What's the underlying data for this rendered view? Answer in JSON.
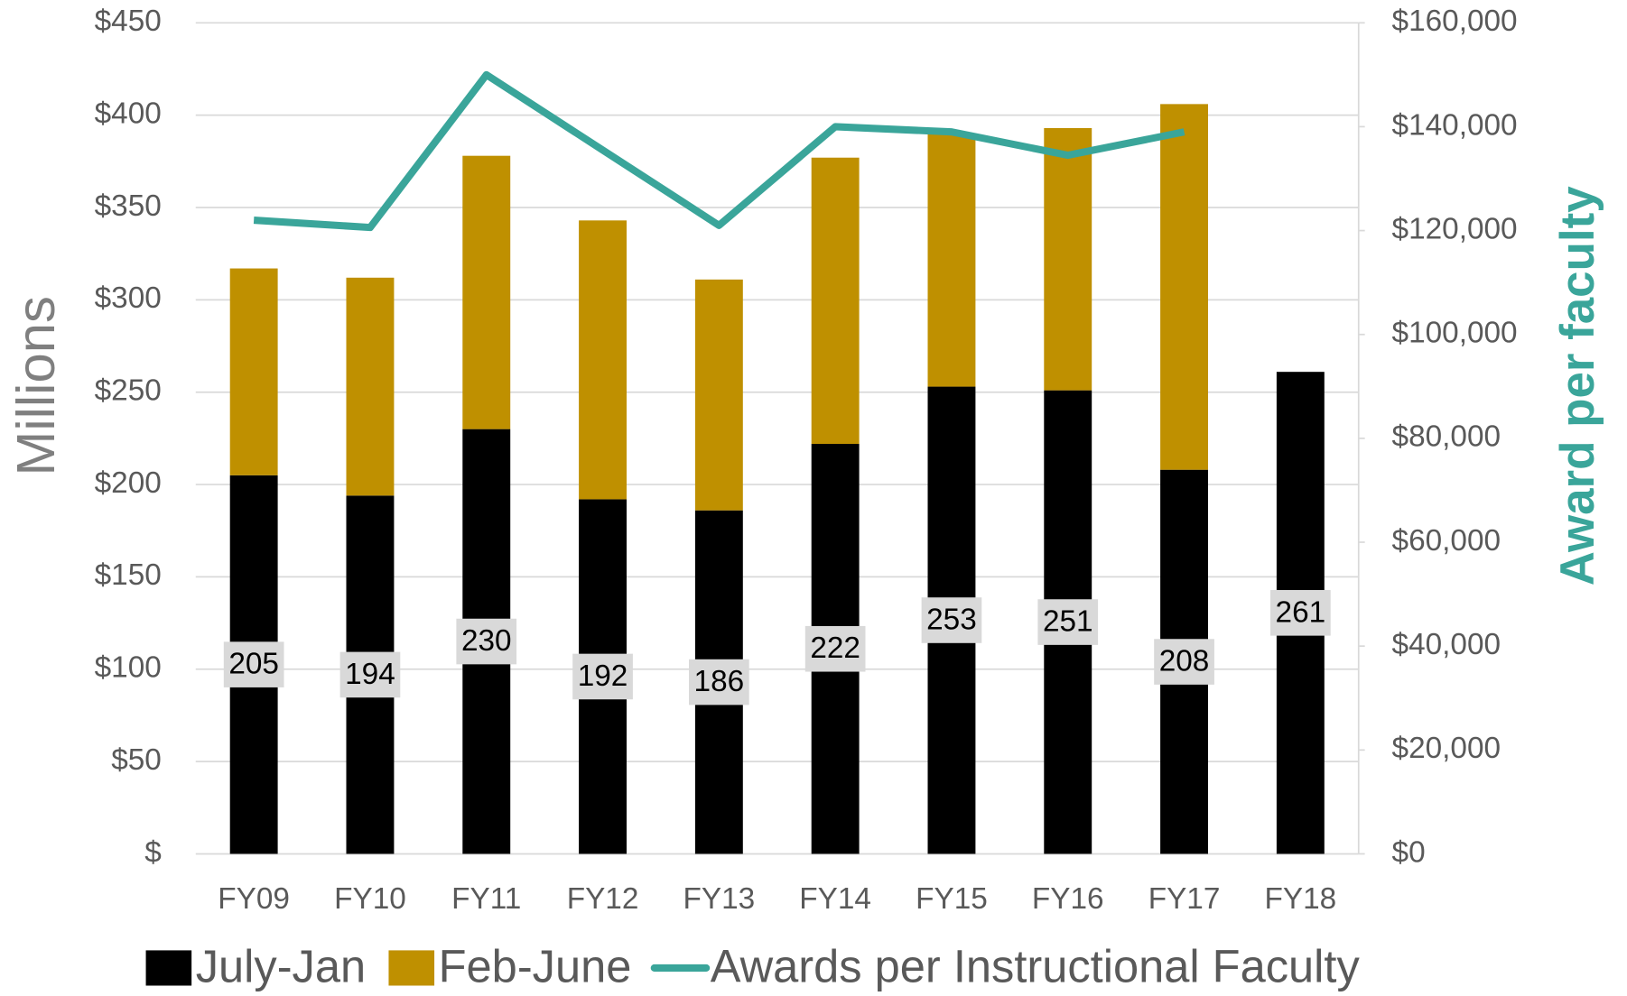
{
  "chart_data": {
    "type": "bar",
    "stacked": true,
    "categories": [
      "FY09",
      "FY10",
      "FY11",
      "FY12",
      "FY13",
      "FY14",
      "FY15",
      "FY16",
      "FY17",
      "FY18"
    ],
    "series": [
      {
        "name": "July-Jan",
        "color": "#000000",
        "values": [
          205,
          194,
          230,
          192,
          186,
          222,
          253,
          251,
          208,
          261
        ],
        "data_labels": true
      },
      {
        "name": "Feb-June",
        "color": "#bf9000",
        "values": [
          112,
          118,
          148,
          151,
          125,
          155,
          137,
          142,
          198,
          null
        ]
      },
      {
        "name": "Awards per Instructional Faculty",
        "type": "line",
        "axis": "y2",
        "color": "#3aa59a",
        "values": [
          122000,
          120600,
          150000,
          135500,
          121000,
          140000,
          139000,
          134500,
          139000,
          null
        ]
      }
    ],
    "ylabel": "Millions",
    "y2label": "Award per faculty",
    "ylim": [
      0,
      450
    ],
    "yticks": [
      {
        "value": 0,
        "label": "$"
      },
      {
        "value": 50,
        "label": "$50"
      },
      {
        "value": 100,
        "label": "$100"
      },
      {
        "value": 150,
        "label": "$150"
      },
      {
        "value": 200,
        "label": "$200"
      },
      {
        "value": 250,
        "label": "$250"
      },
      {
        "value": 300,
        "label": "$300"
      },
      {
        "value": 350,
        "label": "$350"
      },
      {
        "value": 400,
        "label": "$400"
      },
      {
        "value": 450,
        "label": "$450"
      }
    ],
    "y2lim": [
      0,
      160000
    ],
    "y2ticks": [
      {
        "value": 0,
        "label": "$0"
      },
      {
        "value": 20000,
        "label": "$20,000"
      },
      {
        "value": 40000,
        "label": "$40,000"
      },
      {
        "value": 60000,
        "label": "$60,000"
      },
      {
        "value": 80000,
        "label": "$80,000"
      },
      {
        "value": 100000,
        "label": "$100,000"
      },
      {
        "value": 120000,
        "label": "$120,000"
      },
      {
        "value": 140000,
        "label": "$140,000"
      },
      {
        "value": 160000,
        "label": "$160,000"
      }
    ],
    "grid": true,
    "legend": "bottom"
  }
}
